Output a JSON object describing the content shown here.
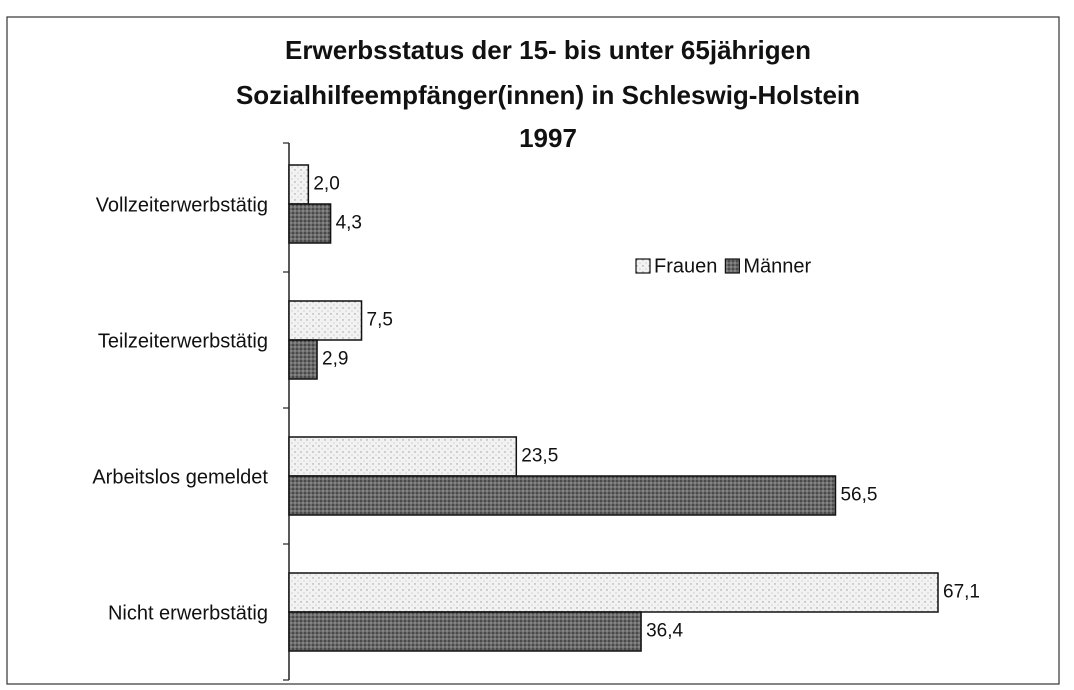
{
  "chart_data": {
    "type": "bar",
    "orientation": "horizontal",
    "title": [
      "Erwerbsstatus der 15- bis unter 65jährigen",
      "Sozialhilfeempfänger(innen) in Schleswig-Holstein",
      "1997"
    ],
    "categories": [
      "Vollzeiterwerbstätig",
      "Teilzeiterwerbstätig",
      "Arbeitslos gemeldet",
      "Nicht erwerbstätig"
    ],
    "series": [
      {
        "name": "Frauen",
        "color": "#f2f2f2",
        "values": [
          2.0,
          7.5,
          23.5,
          67.1
        ],
        "value_labels": [
          "2,0",
          "7,5",
          "23,5",
          "67,1"
        ]
      },
      {
        "name": "Männer",
        "color": "#6a6a6a",
        "values": [
          4.3,
          2.9,
          56.5,
          36.4
        ],
        "value_labels": [
          "4,3",
          "2,9",
          "56,5",
          "36,4"
        ]
      }
    ]
  }
}
